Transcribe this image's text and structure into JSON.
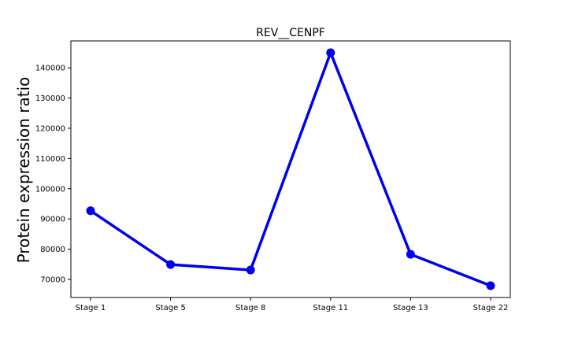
{
  "chart_data": {
    "type": "line",
    "title": "REV__CENPF",
    "xlabel": "",
    "ylabel": "Protein expression ratio",
    "categories": [
      "Stage 1",
      "Stage 5",
      "Stage 8",
      "Stage 11",
      "Stage 13",
      "Stage 22"
    ],
    "series": [
      {
        "values": [
          92700,
          74900,
          73100,
          145000,
          78300,
          67900
        ],
        "color": "#0000ee"
      }
    ],
    "yticks": [
      70000,
      80000,
      90000,
      100000,
      110000,
      120000,
      130000,
      140000
    ],
    "ytick_labels": [
      "70000",
      "80000",
      "90000",
      "100000",
      "110000",
      "120000",
      "130000",
      "140000"
    ],
    "ylim": [
      64000,
      148900
    ],
    "grid": false,
    "legend": "none"
  }
}
